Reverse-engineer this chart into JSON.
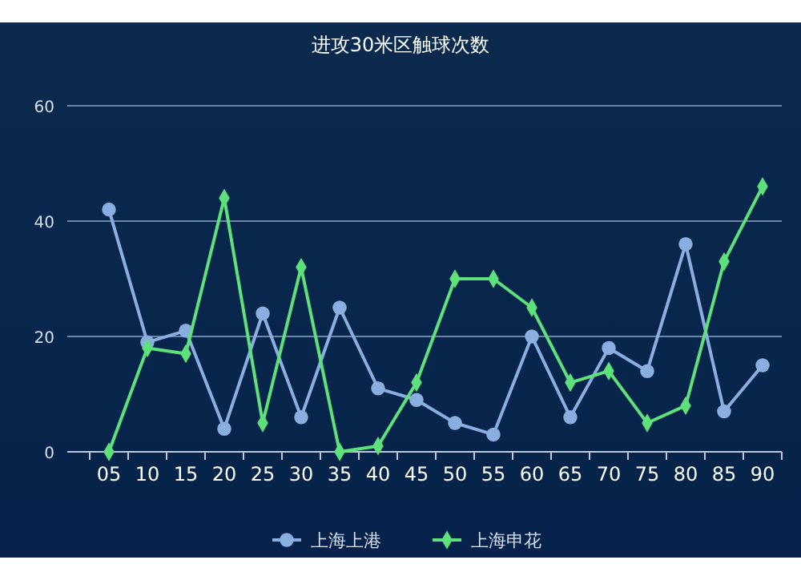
{
  "chart_data": {
    "type": "line",
    "title": "进攻30米区触球次数",
    "categories": [
      "05",
      "10",
      "15",
      "20",
      "25",
      "30",
      "35",
      "40",
      "45",
      "50",
      "55",
      "60",
      "65",
      "70",
      "75",
      "80",
      "85",
      "90"
    ],
    "series": [
      {
        "name": "上海上港",
        "color": "#8aaee0",
        "marker": "circle",
        "values": [
          42,
          19,
          21,
          4,
          24,
          6,
          25,
          11,
          9,
          5,
          3,
          20,
          6,
          18,
          14,
          36,
          7,
          15
        ]
      },
      {
        "name": "上海申花",
        "color": "#5ee07a",
        "marker": "diamond",
        "values": [
          0,
          18,
          17,
          44,
          5,
          32,
          0,
          1,
          12,
          30,
          30,
          25,
          12,
          14,
          5,
          8,
          33,
          46
        ]
      }
    ],
    "ylim": [
      0,
      60
    ],
    "yticks": [
      0,
      20,
      40,
      60
    ],
    "grid": "y",
    "legend": "bottom"
  }
}
